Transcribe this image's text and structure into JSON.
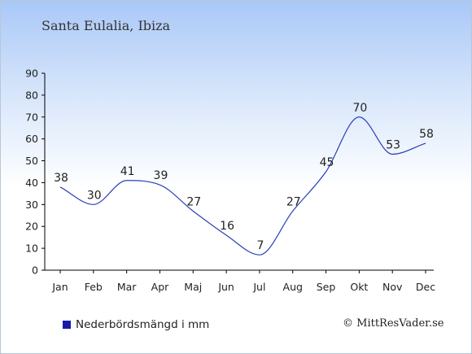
{
  "title": "Santa Eulalia, Ibiza",
  "legend": {
    "label": "Nederbördsmängd i mm",
    "color": "#1a1aa8"
  },
  "credit": "© MittResVader.se",
  "chart_data": {
    "type": "line",
    "categories": [
      "Jan",
      "Feb",
      "Mar",
      "Apr",
      "Maj",
      "Jun",
      "Jul",
      "Aug",
      "Sep",
      "Okt",
      "Nov",
      "Dec"
    ],
    "series": [
      {
        "name": "Nederbördsmängd i mm",
        "values": [
          38,
          30,
          41,
          39,
          27,
          16,
          7,
          27,
          45,
          70,
          53,
          58
        ],
        "color": "#2b3fb5"
      }
    ],
    "ylim": [
      0,
      90
    ],
    "yticks": [
      0,
      10,
      20,
      30,
      40,
      50,
      60,
      70,
      80,
      90
    ],
    "data_labels": true,
    "grid": false,
    "legend_position": "bottom-left"
  }
}
